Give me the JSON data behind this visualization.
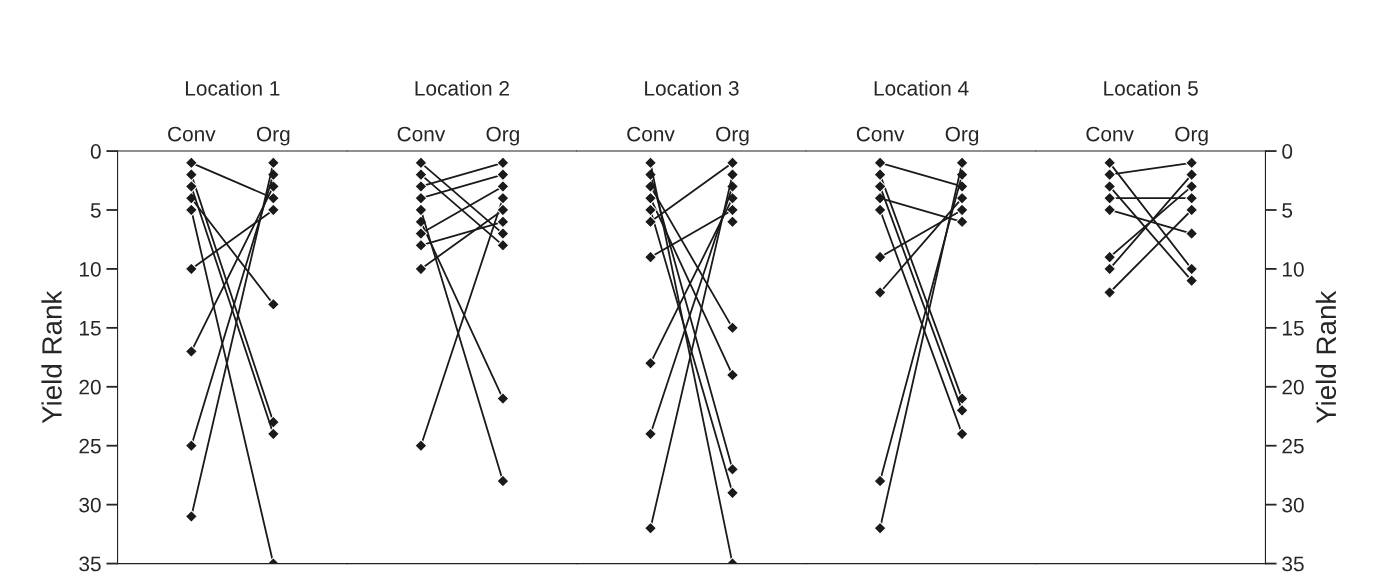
{
  "chart_data": [
    {
      "type": "line",
      "title": "Location 1",
      "categories": [
        "Conv",
        "Org"
      ],
      "ylabel": "Yield Rank",
      "ylim": [
        35,
        0
      ],
      "yticks": [
        0,
        5,
        10,
        15,
        20,
        25,
        30,
        35
      ],
      "marker": "diamond",
      "color": "#1a1a1a",
      "grid": false,
      "series": [
        {
          "values": [
            1,
            4
          ]
        },
        {
          "values": [
            10,
            5
          ]
        },
        {
          "values": [
            17,
            3
          ]
        },
        {
          "values": [
            25,
            2
          ]
        },
        {
          "values": [
            31,
            1
          ]
        },
        {
          "values": [
            4,
            13
          ]
        },
        {
          "values": [
            2,
            23
          ]
        },
        {
          "values": [
            3,
            24
          ]
        },
        {
          "values": [
            5,
            35
          ]
        }
      ]
    },
    {
      "type": "line",
      "title": "Location 2",
      "categories": [
        "Conv",
        "Org"
      ],
      "ylim": [
        35,
        0
      ],
      "yticks": [
        0,
        5,
        10,
        15,
        20,
        25,
        30,
        35
      ],
      "tick_labels": "x",
      "marker": "diamond",
      "color": "#1a1a1a",
      "grid": false,
      "series": [
        {
          "values": [
            25,
            4
          ]
        },
        {
          "values": [
            10,
            5
          ]
        },
        {
          "values": [
            6,
            21
          ]
        },
        {
          "values": [
            5,
            28
          ]
        },
        {
          "values": [
            1,
            7
          ]
        },
        {
          "values": [
            2,
            8
          ]
        },
        {
          "values": [
            3,
            1
          ]
        },
        {
          "values": [
            4,
            2
          ]
        },
        {
          "values": [
            7,
            3
          ]
        },
        {
          "values": [
            8,
            6
          ]
        }
      ]
    },
    {
      "type": "line",
      "title": "Location 3",
      "categories": [
        "Conv",
        "Org"
      ],
      "ylim": [
        35,
        0
      ],
      "yticks": [
        0,
        5,
        10,
        15,
        20,
        25,
        30,
        35
      ],
      "tick_labels": "x",
      "marker": "diamond",
      "color": "#1a1a1a",
      "grid": false,
      "series": [
        {
          "values": [
            9,
            5
          ]
        },
        {
          "values": [
            18,
            4
          ]
        },
        {
          "values": [
            24,
            3
          ]
        },
        {
          "values": [
            32,
            2
          ]
        },
        {
          "values": [
            3,
            15
          ]
        },
        {
          "values": [
            4,
            19
          ]
        },
        {
          "values": [
            2,
            27
          ]
        },
        {
          "values": [
            5,
            29
          ]
        },
        {
          "values": [
            1,
            35
          ]
        },
        {
          "values": [
            6,
            1
          ]
        },
        {
          "values": [
            null,
            6
          ]
        }
      ]
    },
    {
      "type": "line",
      "title": "Location 4",
      "categories": [
        "Conv",
        "Org"
      ],
      "ylim": [
        35,
        0
      ],
      "yticks": [
        0,
        5,
        10,
        15,
        20,
        25,
        30,
        35
      ],
      "tick_labels": "x",
      "marker": "diamond",
      "color": "#1a1a1a",
      "grid": false,
      "series": [
        {
          "values": [
            1,
            3
          ]
        },
        {
          "values": [
            4,
            6
          ]
        },
        {
          "values": [
            9,
            5
          ]
        },
        {
          "values": [
            12,
            4
          ]
        },
        {
          "values": [
            28,
            2
          ]
        },
        {
          "values": [
            32,
            1
          ]
        },
        {
          "values": [
            2,
            21
          ]
        },
        {
          "values": [
            3,
            22
          ]
        },
        {
          "values": [
            5,
            24
          ]
        }
      ]
    },
    {
      "type": "line",
      "title": "Location 5",
      "categories": [
        "Conv",
        "Org"
      ],
      "y2label": "Yield Rank",
      "y2lim": [
        35,
        0
      ],
      "y2ticks": [
        0,
        5,
        10,
        15,
        20,
        25,
        30,
        35
      ],
      "marker": "diamond",
      "color": "#1a1a1a",
      "grid": false,
      "series": [
        {
          "values": [
            2,
            1
          ],
          "axis": "y2"
        },
        {
          "values": [
            4,
            4
          ],
          "axis": "y2"
        },
        {
          "values": [
            9,
            3
          ],
          "axis": "y2"
        },
        {
          "values": [
            10,
            2
          ],
          "axis": "y2"
        },
        {
          "values": [
            12,
            5
          ],
          "axis": "y2"
        },
        {
          "values": [
            5,
            7
          ],
          "axis": "y2"
        },
        {
          "values": [
            1,
            10
          ],
          "axis": "y2"
        },
        {
          "values": [
            3,
            11
          ],
          "axis": "y2"
        }
      ]
    }
  ]
}
